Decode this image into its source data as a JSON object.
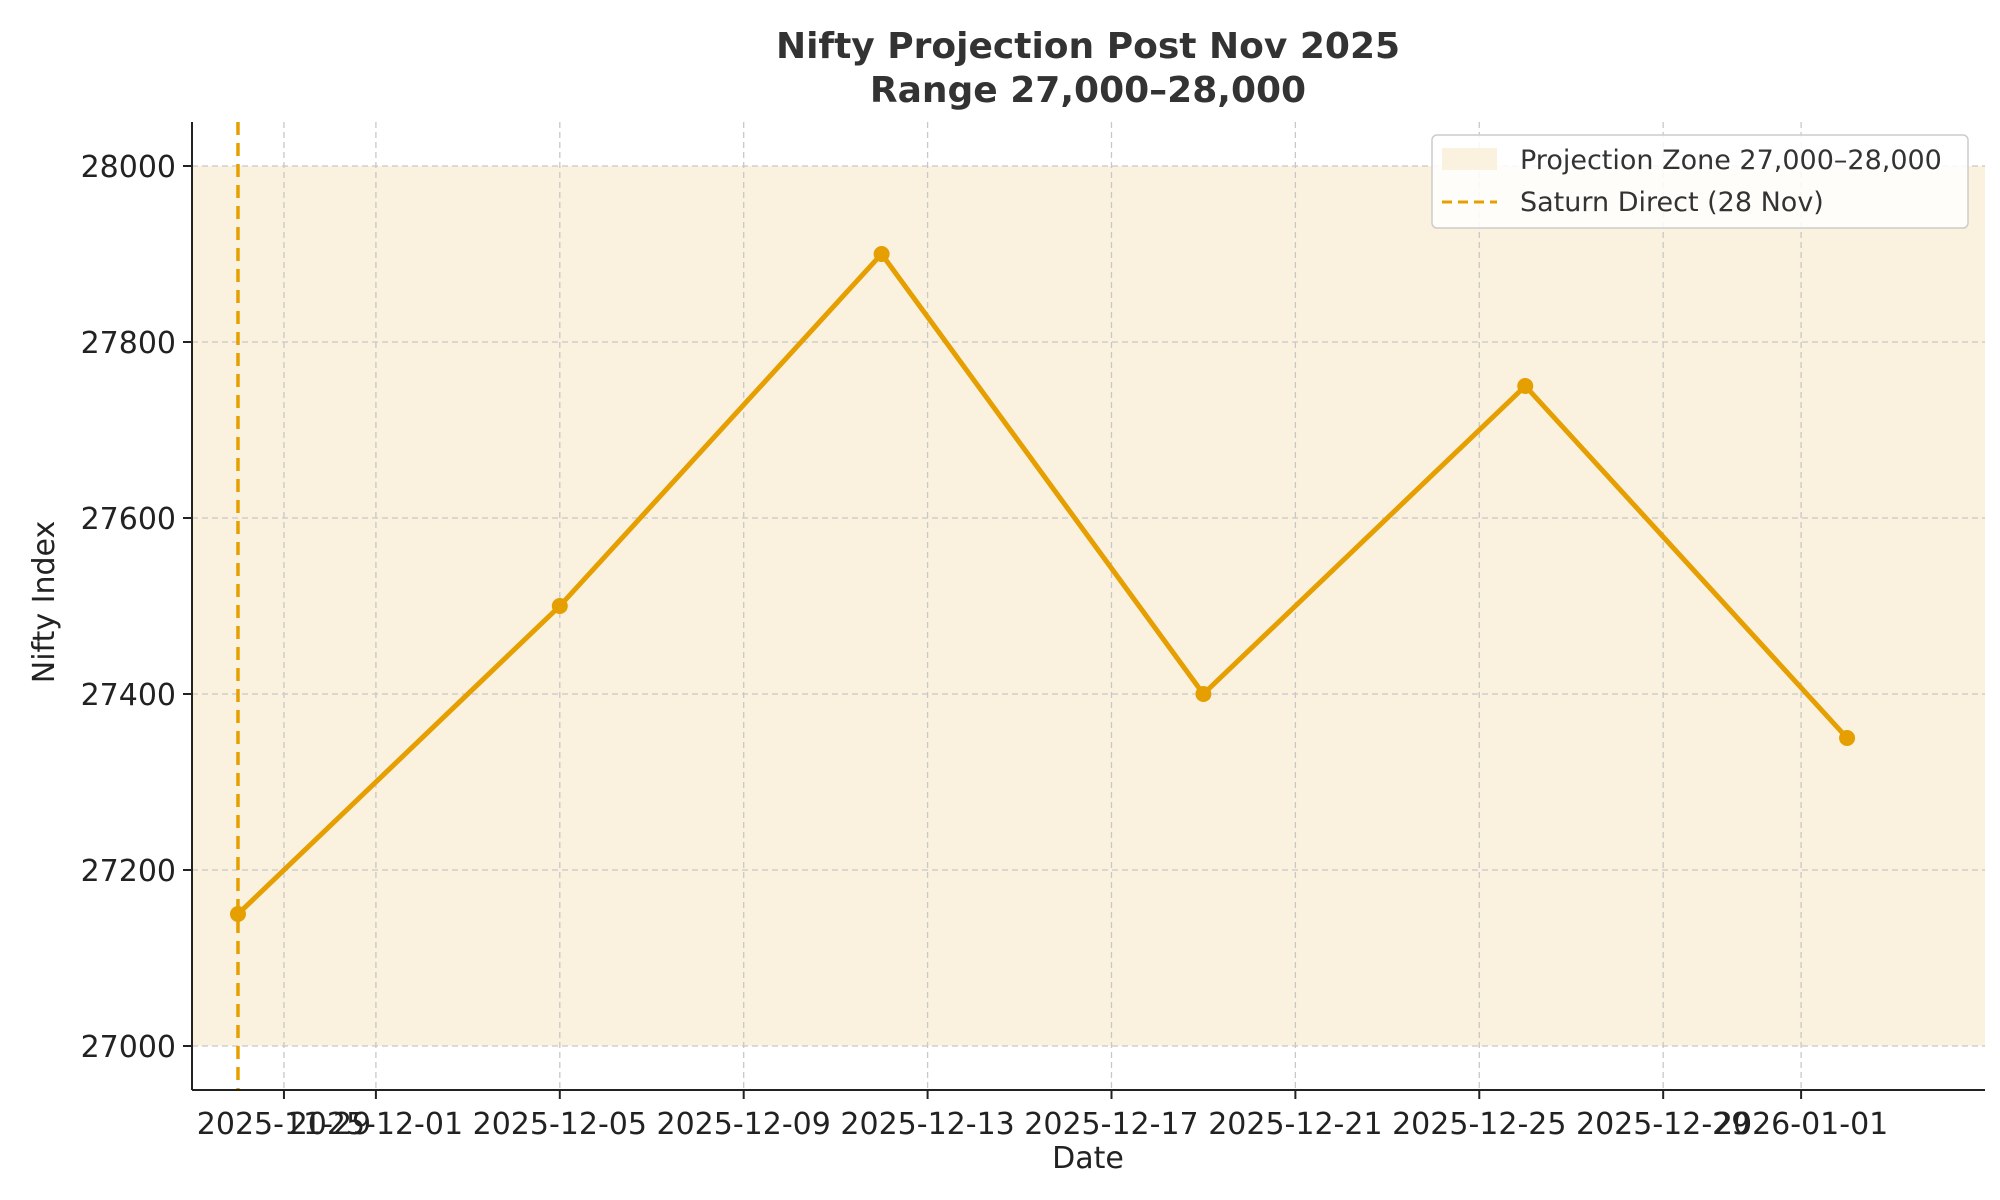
{
  "chart_data": {
    "type": "line",
    "title": "Nifty Projection Post Nov 2025",
    "subtitle": "Range 27,000–28,000",
    "xlabel": "Date",
    "ylabel": "Nifty Index",
    "x_start": "2025-11-27",
    "x_ticks": [
      "2025-11-29",
      "2025-12-01",
      "2025-12-05",
      "2025-12-09",
      "2025-12-13",
      "2025-12-17",
      "2025-12-21",
      "2025-12-25",
      "2025-12-29",
      "2026-01-01"
    ],
    "y_ticks": [
      27000,
      27200,
      27400,
      27600,
      27800,
      28000
    ],
    "xlim": [
      "2025-11-27",
      "2026-01-05"
    ],
    "ylim": [
      26950,
      28050
    ],
    "grid": true,
    "series": [
      {
        "name": "",
        "color": "#e69f00",
        "marker": "circle",
        "points": [
          {
            "x": "2025-11-28",
            "y": 27150
          },
          {
            "x": "2025-12-05",
            "y": 27500
          },
          {
            "x": "2025-12-12",
            "y": 27900
          },
          {
            "x": "2025-12-19",
            "y": 27400
          },
          {
            "x": "2025-12-26",
            "y": 27750
          },
          {
            "x": "2026-01-02",
            "y": 27350
          }
        ]
      }
    ],
    "projection_zone": {
      "label": "Projection Zone 27,000–28,000",
      "y_from": 27000,
      "y_to": 28000,
      "color": "#faf1df"
    },
    "vertical_line": {
      "label": "Saturn Direct (28 Nov)",
      "x": "2025-11-28",
      "color": "#e69f00",
      "style": "dashed"
    },
    "legend": {
      "placement": "top-right"
    }
  }
}
